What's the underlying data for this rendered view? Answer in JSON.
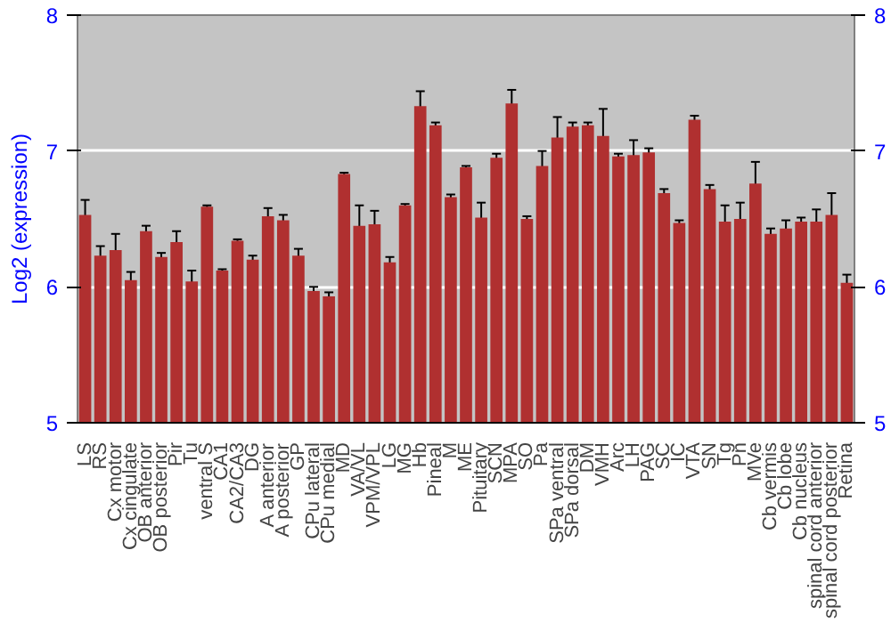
{
  "chart_data": {
    "type": "bar",
    "ylabel": "Log2 (expression)",
    "categories": [
      "LS",
      "RS",
      "Cx motor",
      "Cx cingulate",
      "OB anterior",
      "OB posterior",
      "Pir",
      "Tu",
      "ventral S",
      "CA1",
      "CA2/CA3",
      "DG",
      "A anterior",
      "A posterior",
      "GP",
      "CPu lateral",
      "CPu medial",
      "MD",
      "VA/VL",
      "VPM/VPL",
      "LG",
      "MG",
      "Hb",
      "Pineal",
      "M",
      "ME",
      "Pituitary",
      "SCN",
      "MPA",
      "SO",
      "Pa",
      "SPa ventral",
      "SPa dorsal",
      "DM",
      "VMH",
      "Arc",
      "LH",
      "PAG",
      "SC",
      "IC",
      "VTA",
      "SN",
      "Tg",
      "Pn",
      "MVe",
      "Cb vermis",
      "Cb lobe",
      "Cb nucleus",
      "spinal cord anterior",
      "spinal cord posterior",
      "Retina"
    ],
    "values": [
      6.53,
      6.23,
      6.27,
      6.05,
      6.41,
      6.22,
      6.33,
      6.04,
      6.59,
      6.12,
      6.34,
      6.2,
      6.52,
      6.49,
      6.23,
      5.97,
      5.93,
      6.83,
      6.45,
      6.46,
      6.18,
      6.6,
      7.33,
      7.19,
      6.66,
      6.88,
      6.51,
      6.95,
      7.35,
      6.5,
      6.89,
      7.1,
      7.18,
      7.19,
      7.11,
      6.96,
      6.97,
      6.99,
      6.69,
      6.47,
      7.23,
      6.72,
      6.48,
      6.5,
      6.76,
      6.39,
      6.43,
      6.48,
      6.48,
      6.53,
      6.03
    ],
    "errors": [
      0.11,
      0.07,
      0.12,
      0.06,
      0.04,
      0.03,
      0.08,
      0.08,
      0.01,
      0.01,
      0.01,
      0.03,
      0.06,
      0.04,
      0.05,
      0.03,
      0.03,
      0.01,
      0.15,
      0.1,
      0.04,
      0.01,
      0.11,
      0.02,
      0.02,
      0.01,
      0.11,
      0.03,
      0.1,
      0.02,
      0.11,
      0.15,
      0.03,
      0.02,
      0.2,
      0.02,
      0.11,
      0.03,
      0.03,
      0.02,
      0.03,
      0.03,
      0.12,
      0.12,
      0.16,
      0.04,
      0.06,
      0.03,
      0.09,
      0.16,
      0.06
    ],
    "color": "#b03030",
    "ylim": [
      5,
      8
    ],
    "yticks": [
      5,
      6,
      7,
      8
    ],
    "y2lim": [
      5,
      8
    ],
    "y2ticks": [
      5,
      6,
      7,
      8
    ],
    "grid": "y"
  }
}
